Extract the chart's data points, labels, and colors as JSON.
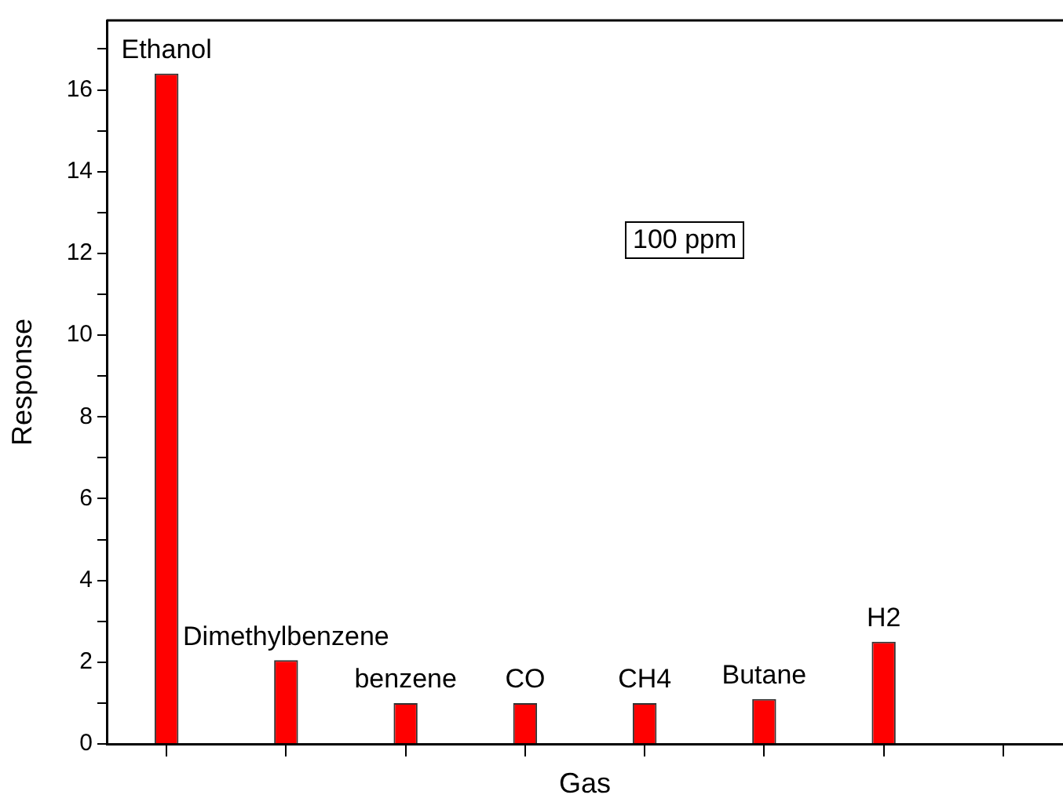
{
  "chart_data": {
    "type": "bar",
    "xlabel": "Gas",
    "ylabel": "Response",
    "categories": [
      "Ethanol",
      "Dimethylbenzene",
      "benzene",
      "CO",
      "CH4",
      "Butane",
      "H2",
      null
    ],
    "values": [
      16.4,
      2.05,
      1.0,
      1.0,
      1.0,
      1.1,
      2.5,
      null
    ],
    "color": "#ff0000",
    "ylim": [
      0,
      17.7
    ],
    "yticks": [
      0,
      {
        "value": 1,
        "label": null
      },
      2,
      {
        "value": 3,
        "label": null
      },
      4,
      {
        "value": 5,
        "label": null
      },
      6,
      {
        "value": 7,
        "label": null
      },
      8,
      {
        "value": 9,
        "label": null
      },
      10,
      {
        "value": 11,
        "label": null
      },
      12,
      {
        "value": 13,
        "label": null
      },
      14,
      {
        "value": 15,
        "label": null
      },
      16,
      {
        "value": 17,
        "label": null
      }
    ],
    "annotations": [
      "100 ppm"
    ],
    "grid": false,
    "legend": false
  }
}
